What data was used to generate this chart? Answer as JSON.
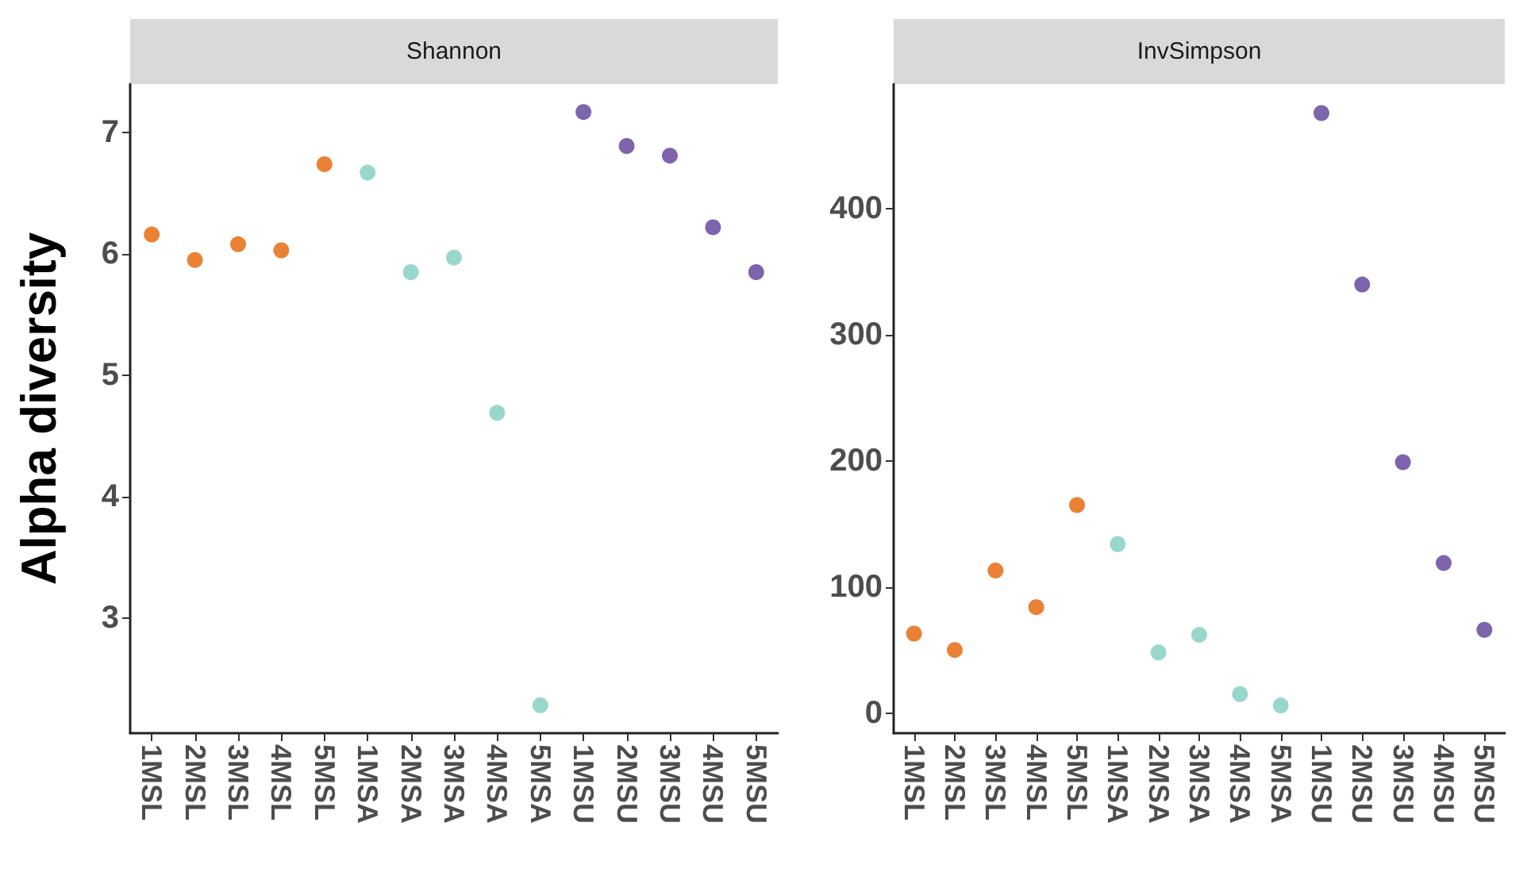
{
  "chart_data": [
    {
      "type": "scatter",
      "title": "Shannon",
      "ylabel": "Alpha diversity",
      "marker": "circle",
      "categories": [
        "1MSL",
        "2MSL",
        "3MSL",
        "4MSL",
        "5MSL",
        "1MSA",
        "2MSA",
        "3MSA",
        "4MSA",
        "5MSA",
        "1MSU",
        "2MSU",
        "3MSU",
        "4MSU",
        "5MSU"
      ],
      "ylim": [
        2.05,
        7.4
      ],
      "yticks": [
        3,
        4,
        5,
        6,
        7
      ],
      "series": [
        {
          "color": "#e66101",
          "values": [
            6.16,
            5.95,
            6.08,
            6.03,
            6.74,
            null,
            null,
            null,
            null,
            null,
            null,
            null,
            null,
            null,
            null
          ]
        },
        {
          "color": "#80cdc1",
          "values": [
            null,
            null,
            null,
            null,
            null,
            6.67,
            5.85,
            5.97,
            4.69,
            2.28,
            null,
            null,
            null,
            null,
            null
          ]
        },
        {
          "color": "#5e3c99",
          "values": [
            null,
            null,
            null,
            null,
            null,
            null,
            null,
            null,
            null,
            null,
            7.17,
            6.89,
            6.81,
            6.22,
            5.85
          ]
        }
      ]
    },
    {
      "type": "scatter",
      "title": "InvSimpson",
      "marker": "circle",
      "categories": [
        "1MSL",
        "2MSL",
        "3MSL",
        "4MSL",
        "5MSL",
        "1MSA",
        "2MSA",
        "3MSA",
        "4MSA",
        "5MSA",
        "1MSU",
        "2MSU",
        "3MSU",
        "4MSU",
        "5MSU"
      ],
      "ylim": [
        -16,
        499
      ],
      "yticks": [
        0,
        100,
        200,
        300,
        400
      ],
      "series": [
        {
          "color": "#e66101",
          "values": [
            63,
            50,
            113,
            84,
            165,
            null,
            null,
            null,
            null,
            null,
            null,
            null,
            null,
            null,
            null
          ]
        },
        {
          "color": "#80cdc1",
          "values": [
            null,
            null,
            null,
            null,
            null,
            134,
            48,
            62,
            15,
            6,
            null,
            null,
            null,
            null,
            null
          ]
        },
        {
          "color": "#5e3c99",
          "values": [
            null,
            null,
            null,
            null,
            null,
            null,
            null,
            null,
            null,
            null,
            476,
            340,
            199,
            119,
            66
          ]
        }
      ]
    }
  ]
}
